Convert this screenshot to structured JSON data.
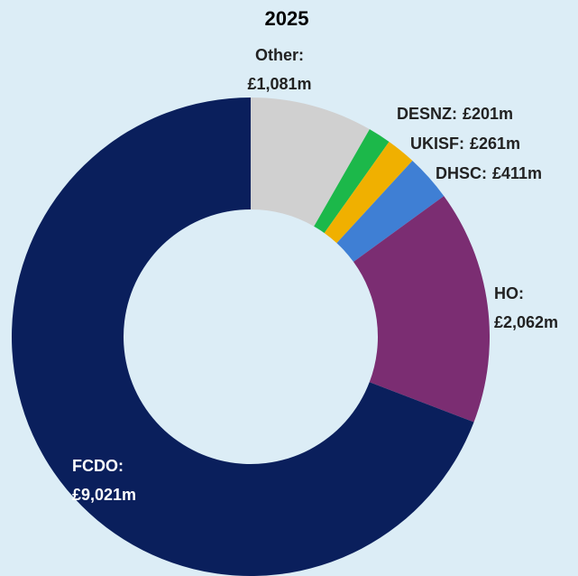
{
  "chart_data": {
    "type": "donut",
    "title": "2025",
    "categories": [
      "Other:",
      "DESNZ:",
      "UKISF:",
      "DHSC:",
      "HO:",
      "FCDO:"
    ],
    "values": [
      1081,
      201,
      261,
      411,
      2062,
      9021
    ],
    "value_labels": [
      "£1,081m",
      "£201m",
      "£261m",
      "£411m",
      "£2,062m",
      "£9,021m"
    ],
    "colors": [
      "#d0d0d0",
      "#1cb84a",
      "#f0b000",
      "#3f7fd4",
      "#7b2d72",
      "#0a1f5c"
    ]
  }
}
